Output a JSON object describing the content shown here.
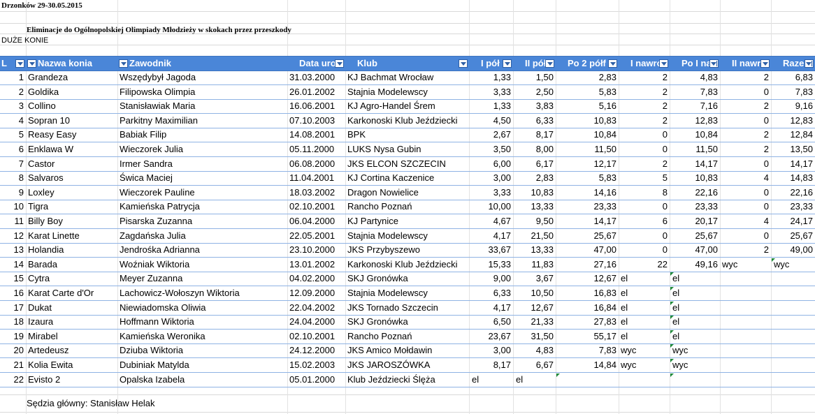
{
  "sheet": {
    "title": "Drzonków 29-30.05.2015",
    "subtitle": "Eliminacje do Ogólnopolskiej Olimpiady Młodzieży w skokach przez przeszkody",
    "category": "DUŻE KONIE",
    "judge": "Sędzia główny: Stanisław Helak"
  },
  "columns": [
    "L",
    "Nazwa konia",
    "Zawodnik",
    "Data uro",
    "Klub",
    "I pół",
    "II pół",
    "Po 2 półf",
    "I nawró",
    "Po I na",
    "II nawró",
    "Razem"
  ],
  "rows": [
    [
      "1",
      "Grandeza",
      "Wszędybył Jagoda",
      "31.03.2000",
      "KJ Bachmat Wrocław",
      "1,33",
      "1,50",
      "2,83",
      "2",
      "4,83",
      "2",
      "6,83"
    ],
    [
      "2",
      "Goldika",
      "Filipowska Olimpia",
      "26.01.2002",
      "Stajnia Modelewscy",
      "3,33",
      "2,50",
      "5,83",
      "2",
      "7,83",
      "0",
      "7,83"
    ],
    [
      "3",
      "Collino",
      "Stanisławiak Maria",
      "16.06.2001",
      "KJ Agro-Handel Śrem",
      "1,33",
      "3,83",
      "5,16",
      "2",
      "7,16",
      "2",
      "9,16"
    ],
    [
      "4",
      "Sopran 10",
      "Parkitny Maximilian",
      "07.10.2003",
      "Karkonoski Klub Jeździecki",
      "4,50",
      "6,33",
      "10,83",
      "2",
      "12,83",
      "0",
      "12,83"
    ],
    [
      "5",
      "Reasy Easy",
      "Babiak Filip",
      "14.08.2001",
      "BPK",
      "2,67",
      "8,17",
      "10,84",
      "0",
      "10,84",
      "2",
      "12,84"
    ],
    [
      "6",
      "Enklawa W",
      "Wieczorek Julia",
      "05.11.2000",
      "LUKS Nysa Gubin",
      "3,50",
      "8,00",
      "11,50",
      "0",
      "11,50",
      "2",
      "13,50"
    ],
    [
      "7",
      "Castor",
      "Irmer Sandra",
      "06.08.2000",
      "JKS ELCON SZCZECIN",
      "6,00",
      "6,17",
      "12,17",
      "2",
      "14,17",
      "0",
      "14,17"
    ],
    [
      "8",
      "Salvaros",
      "Świca Maciej",
      "11.04.2001",
      "KJ Cortina Kaczenice",
      "3,00",
      "2,83",
      "5,83",
      "5",
      "10,83",
      "4",
      "14,83"
    ],
    [
      "9",
      "Loxley",
      "Wieczorek Pauline",
      "18.03.2002",
      "Dragon Nowielice",
      "3,33",
      "10,83",
      "14,16",
      "8",
      "22,16",
      "0",
      "22,16"
    ],
    [
      "10",
      "Tigra",
      "Kamieńska Patrycja",
      "02.10.2001",
      "Rancho Poznań",
      "10,00",
      "13,33",
      "23,33",
      "0",
      "23,33",
      "0",
      "23,33"
    ],
    [
      "11",
      "Billy Boy",
      "Pisarska Zuzanna",
      "06.04.2000",
      "KJ Partynice",
      "4,67",
      "9,50",
      "14,17",
      "6",
      "20,17",
      "4",
      "24,17"
    ],
    [
      "12",
      "Karat Linette",
      "Zagdańska Julia",
      "22.05.2001",
      "Stajnia Modelewscy",
      "4,17",
      "21,50",
      "25,67",
      "0",
      "25,67",
      "0",
      "25,67"
    ],
    [
      "13",
      "Holandia",
      "Jendrośka Adrianna",
      "23.10.2000",
      "JKS Przybyszewo",
      "33,67",
      "13,33",
      "47,00",
      "0",
      "47,00",
      "2",
      "49,00"
    ],
    [
      "14",
      "Barada",
      "Woźniak Wiktoria",
      "13.01.2002",
      "Karkonoski Klub Jeździecki",
      "15,33",
      "11,83",
      "27,16",
      "22",
      "49,16 wyc",
      "",
      "wyc"
    ],
    [
      "15",
      "Cytra",
      "Meyer Zuzanna",
      "04.02.2000",
      "SKJ Gronówka",
      "9,00",
      "3,67",
      "12,67 el",
      "",
      "el",
      "",
      ""
    ],
    [
      "16",
      "Karat Carte d'Or",
      "Lachowicz-Wołoszyn Wiktoria",
      "12.09.2000",
      "Stajnia Modelewscy",
      "6,33",
      "10,50",
      "16,83 el",
      "",
      "el",
      "",
      ""
    ],
    [
      "17",
      "Dukat",
      "Niewiadomska Oliwia",
      "22.04.2002",
      "JKS Tornado Szczecin",
      "4,17",
      "12,67",
      "16,84 el",
      "",
      "el",
      "",
      ""
    ],
    [
      "18",
      "Izaura",
      "Hoffmann Wiktoria",
      "24.04.2000",
      "SKJ Gronówka",
      "6,50",
      "21,33",
      "27,83 el",
      "",
      "el",
      "",
      ""
    ],
    [
      "19",
      "Mirabel",
      "Kamieńska Weronika",
      "02.10.2001",
      "Rancho Poznań",
      "23,67",
      "31,50",
      "55,17 el",
      "",
      "el",
      "",
      ""
    ],
    [
      "20",
      "Artedeusz",
      "Dziuba Wiktoria",
      "24.12.2000",
      "JKS Amico Mołdawin",
      "3,00",
      "4,83",
      "7,83 wyc",
      "",
      "wyc",
      "",
      ""
    ],
    [
      "21",
      "Kolia Ewita",
      "Dubiniak Matylda",
      "15.02.2003",
      "JKS JAROSZÓWKA",
      "8,17",
      "6,67",
      "14,84 wyc",
      "",
      "wyc",
      "",
      ""
    ],
    [
      "22",
      "Evisto 2",
      "Opalska Izabela",
      "05.01.2000",
      "Klub Jeździecki  Ślęża",
      "el",
      "el",
      "",
      "",
      "",
      "",
      ""
    ]
  ],
  "colors": {
    "header_bg": "#4a86d8",
    "row_border": "#8fb3e4",
    "comment_marker": "#1f8a3a"
  }
}
